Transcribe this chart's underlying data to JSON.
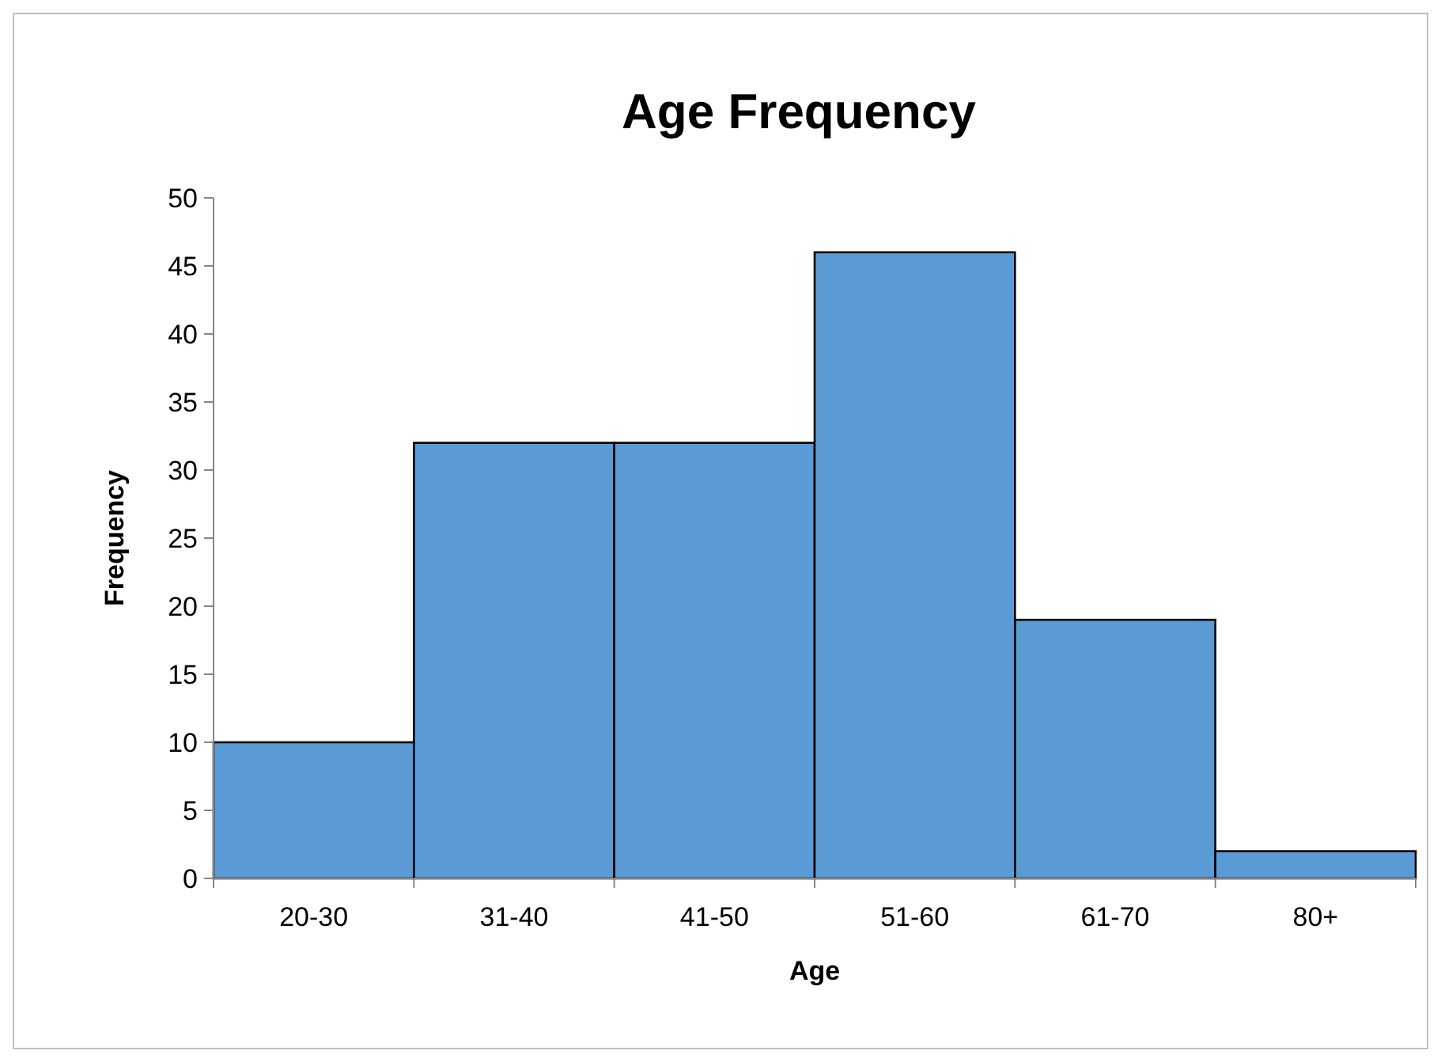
{
  "chart_data": {
    "type": "bar",
    "title": "Age Frequency",
    "xlabel": "Age",
    "ylabel": "Frequency",
    "categories": [
      "20-30",
      "31-40",
      "41-50",
      "51-60",
      "61-70",
      "80+"
    ],
    "values": [
      10,
      32,
      32,
      46,
      19,
      2
    ],
    "color": "#5b9bd5",
    "ylim": [
      0,
      50
    ],
    "yticks": [
      0,
      5,
      10,
      15,
      20,
      25,
      30,
      35,
      40,
      45,
      50
    ],
    "grid": false
  }
}
